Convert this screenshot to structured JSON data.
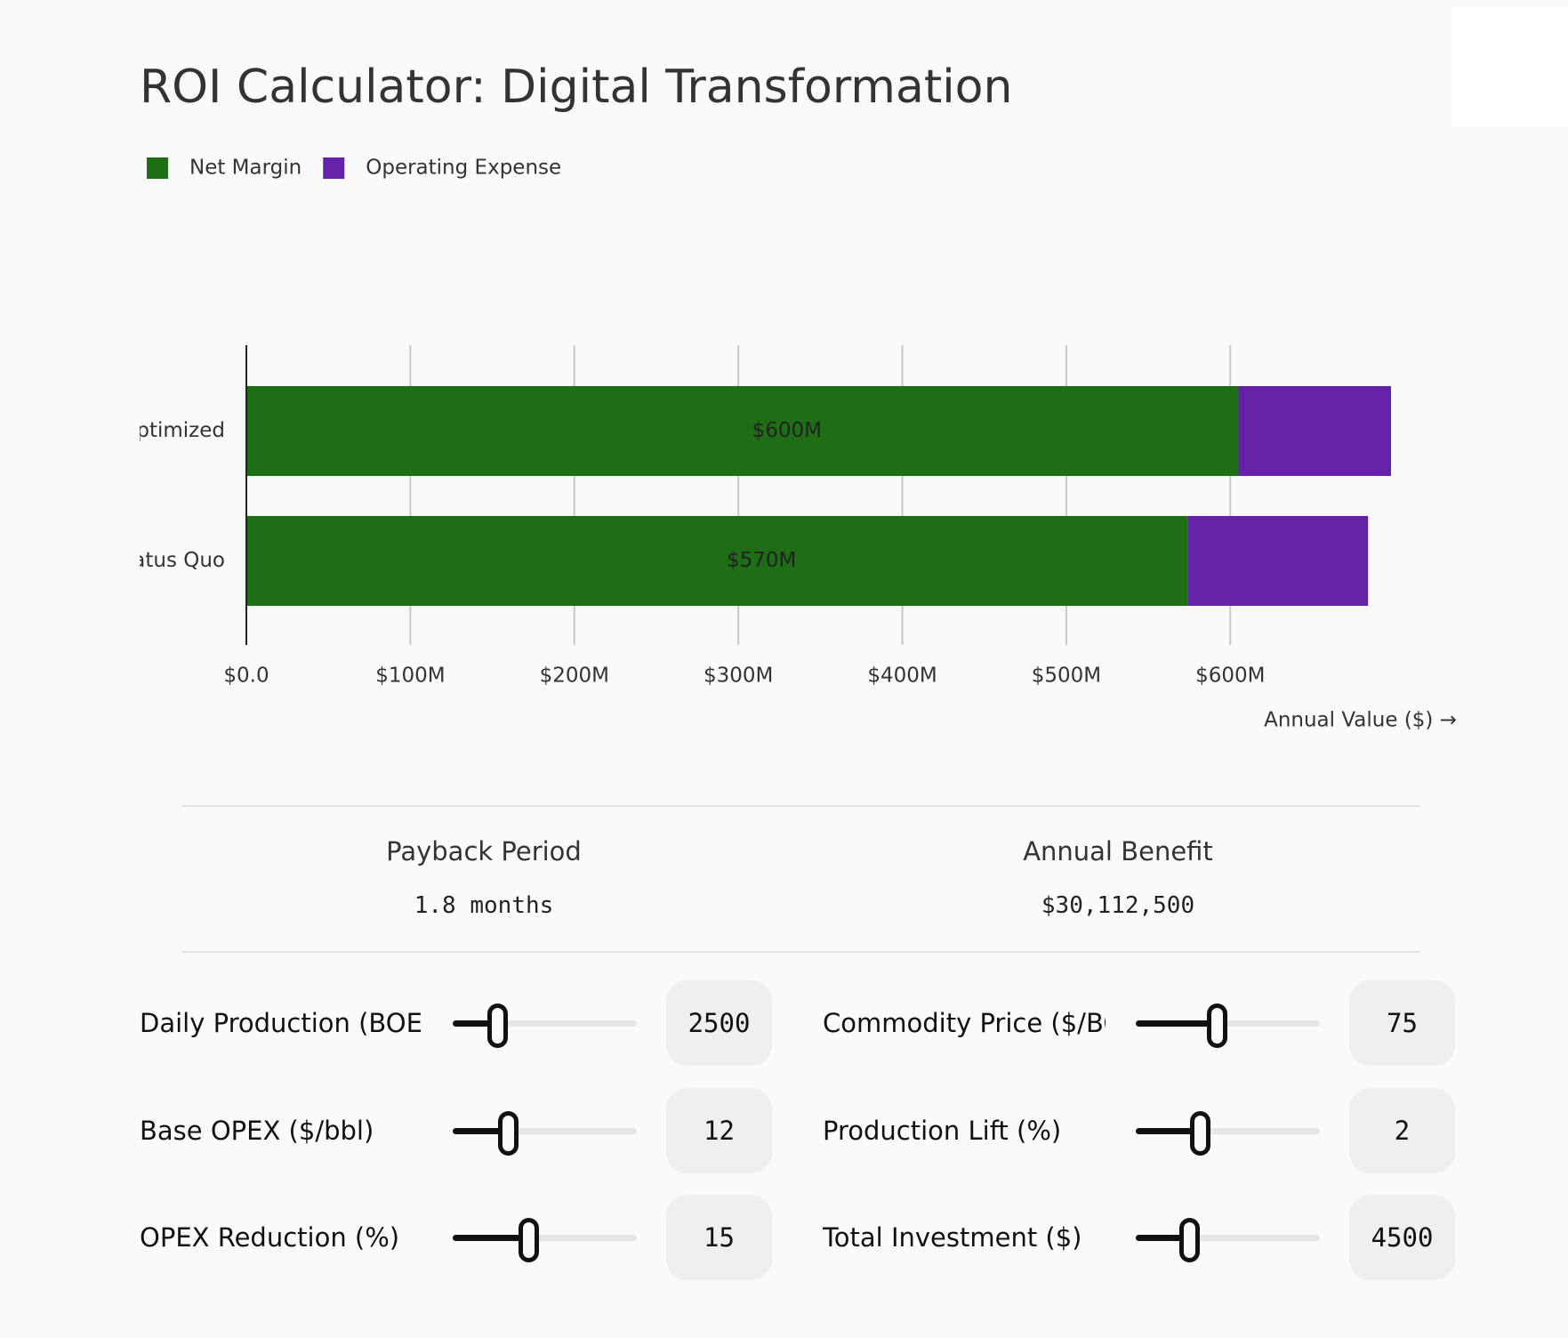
{
  "chart_data": {
    "type": "stacked-barh",
    "title": "ROI Calculator: Digital Transformation",
    "categories": [
      "Optimized",
      "Status Quo"
    ],
    "series": [
      {
        "name": "Net Margin",
        "color": "#1e6e15",
        "values": [
          605000000,
          574000000
        ],
        "value_labels": [
          "$600M",
          "$570M"
        ]
      },
      {
        "name": "Operating Expense",
        "color": "#6522a8",
        "values": [
          93000000,
          110000000
        ]
      }
    ],
    "xlim": [
      0,
      698000000
    ],
    "xticks": [
      {
        "value": 0,
        "label": "$0.0"
      },
      {
        "value": 100000000,
        "label": "$100M"
      },
      {
        "value": 200000000,
        "label": "$200M"
      },
      {
        "value": 300000000,
        "label": "$300M"
      },
      {
        "value": 400000000,
        "label": "$400M"
      },
      {
        "value": 500000000,
        "label": "$500M"
      },
      {
        "value": 600000000,
        "label": "$600M"
      }
    ],
    "xlabel": "Annual Value ($) →",
    "grid": true,
    "legend": "top-left"
  },
  "metrics": [
    {
      "label": "Payback Period",
      "value": "1.8 months"
    },
    {
      "label": "Annual Benefit",
      "value": "$30,112,500"
    }
  ],
  "controls": [
    {
      "label": "Daily Production (BOE/d)",
      "value": "2500"
    },
    {
      "label": "Commodity Price ($/BOE)",
      "value": "75"
    },
    {
      "label": "Base OPEX ($/bbl)",
      "value": "12"
    },
    {
      "label": "Production Lift (%)",
      "value": "2"
    },
    {
      "label": "OPEX Reduction (%)",
      "value": "15"
    },
    {
      "label": "Total Investment ($)",
      "value": "4500"
    }
  ]
}
